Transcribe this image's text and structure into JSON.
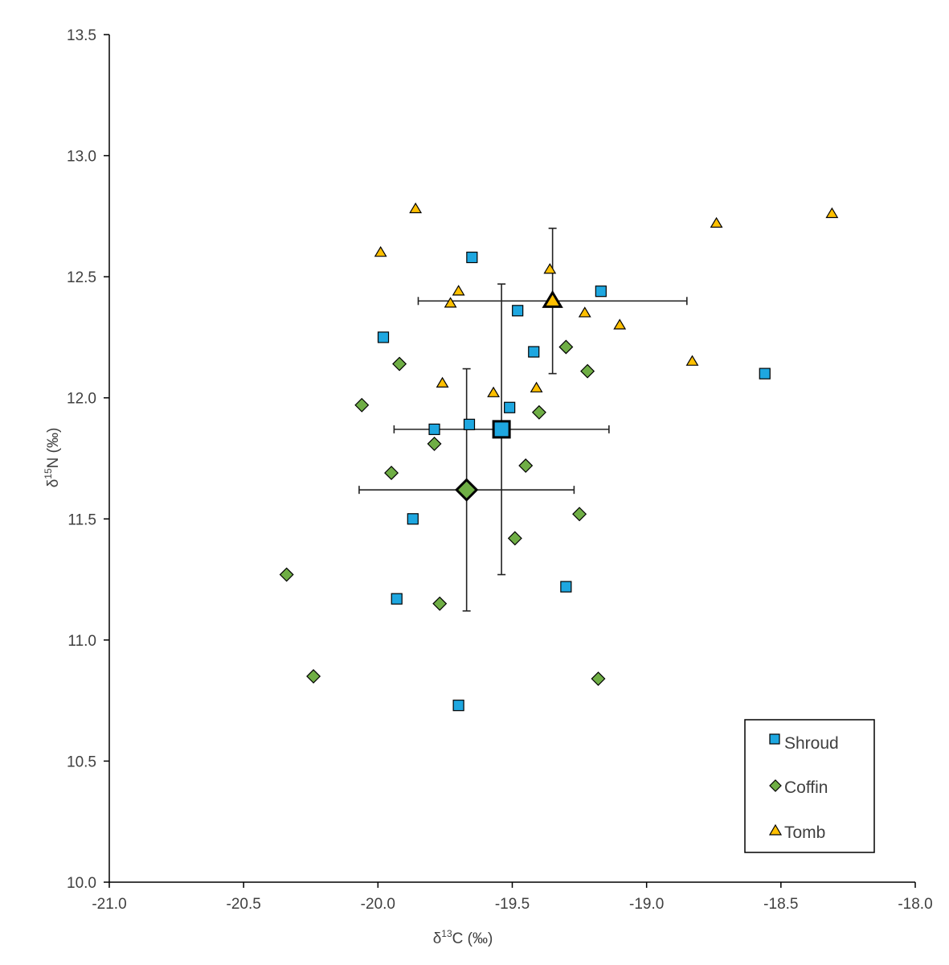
{
  "chart_data": {
    "type": "scatter",
    "xlabel_parts": [
      "δ",
      "13",
      "C (‰)"
    ],
    "ylabel_parts": [
      "δ",
      "15",
      "N  (‰)"
    ],
    "xlim": [
      -21.0,
      -18.0
    ],
    "ylim": [
      10.0,
      13.5
    ],
    "x_ticks": [
      -21.0,
      -20.5,
      -20.0,
      -19.5,
      -19.0,
      -18.5,
      -18.0
    ],
    "y_ticks": [
      10.0,
      10.5,
      11.0,
      11.5,
      12.0,
      12.5,
      13.0,
      13.5
    ],
    "x_tick_labels": [
      "-21.0",
      "-20.5",
      "-20.0",
      "-19.5",
      "-19.0",
      "-18.5",
      "-18.0"
    ],
    "y_tick_labels": [
      "10.0",
      "10.5",
      "11.0",
      "11.5",
      "12.0",
      "12.5",
      "13.0",
      "13.5"
    ],
    "grid": false,
    "legend_position": "bottom-right",
    "series": [
      {
        "name": "Shroud",
        "marker": "square",
        "color": "#1EA7E0",
        "points": [
          {
            "x": -19.65,
            "y": 12.58
          },
          {
            "x": -19.17,
            "y": 12.44
          },
          {
            "x": -19.48,
            "y": 12.36
          },
          {
            "x": -19.98,
            "y": 12.25
          },
          {
            "x": -19.42,
            "y": 12.19
          },
          {
            "x": -18.56,
            "y": 12.1
          },
          {
            "x": -19.51,
            "y": 11.96
          },
          {
            "x": -19.66,
            "y": 11.89
          },
          {
            "x": -19.79,
            "y": 11.87
          },
          {
            "x": -19.87,
            "y": 11.5
          },
          {
            "x": -19.3,
            "y": 11.22
          },
          {
            "x": -19.93,
            "y": 11.17
          },
          {
            "x": -19.7,
            "y": 10.73
          }
        ],
        "mean": {
          "x": -19.54,
          "y": 11.87,
          "x_err": 0.4,
          "y_err": 0.6
        }
      },
      {
        "name": "Coffin",
        "marker": "diamond",
        "color": "#6FAE45",
        "points": [
          {
            "x": -19.3,
            "y": 12.21
          },
          {
            "x": -19.92,
            "y": 12.14
          },
          {
            "x": -19.22,
            "y": 12.11
          },
          {
            "x": -20.06,
            "y": 11.97
          },
          {
            "x": -19.4,
            "y": 11.94
          },
          {
            "x": -19.79,
            "y": 11.81
          },
          {
            "x": -19.45,
            "y": 11.72
          },
          {
            "x": -19.95,
            "y": 11.69
          },
          {
            "x": -19.25,
            "y": 11.52
          },
          {
            "x": -19.49,
            "y": 11.42
          },
          {
            "x": -20.34,
            "y": 11.27
          },
          {
            "x": -19.77,
            "y": 11.15
          },
          {
            "x": -20.24,
            "y": 10.85
          },
          {
            "x": -19.18,
            "y": 10.84
          }
        ],
        "mean": {
          "x": -19.67,
          "y": 11.62,
          "x_err": 0.4,
          "y_err": 0.5
        }
      },
      {
        "name": "Tomb",
        "marker": "triangle",
        "color": "#FFC000",
        "points": [
          {
            "x": -19.86,
            "y": 12.78
          },
          {
            "x": -18.31,
            "y": 12.76
          },
          {
            "x": -18.74,
            "y": 12.72
          },
          {
            "x": -19.99,
            "y": 12.6
          },
          {
            "x": -19.36,
            "y": 12.53
          },
          {
            "x": -19.7,
            "y": 12.44
          },
          {
            "x": -19.73,
            "y": 12.39
          },
          {
            "x": -19.23,
            "y": 12.35
          },
          {
            "x": -19.1,
            "y": 12.3
          },
          {
            "x": -18.83,
            "y": 12.15
          },
          {
            "x": -19.76,
            "y": 12.06
          },
          {
            "x": -19.41,
            "y": 12.04
          },
          {
            "x": -19.57,
            "y": 12.02
          }
        ],
        "mean": {
          "x": -19.35,
          "y": 12.4,
          "x_err": 0.5,
          "y_err": 0.3
        }
      }
    ]
  }
}
